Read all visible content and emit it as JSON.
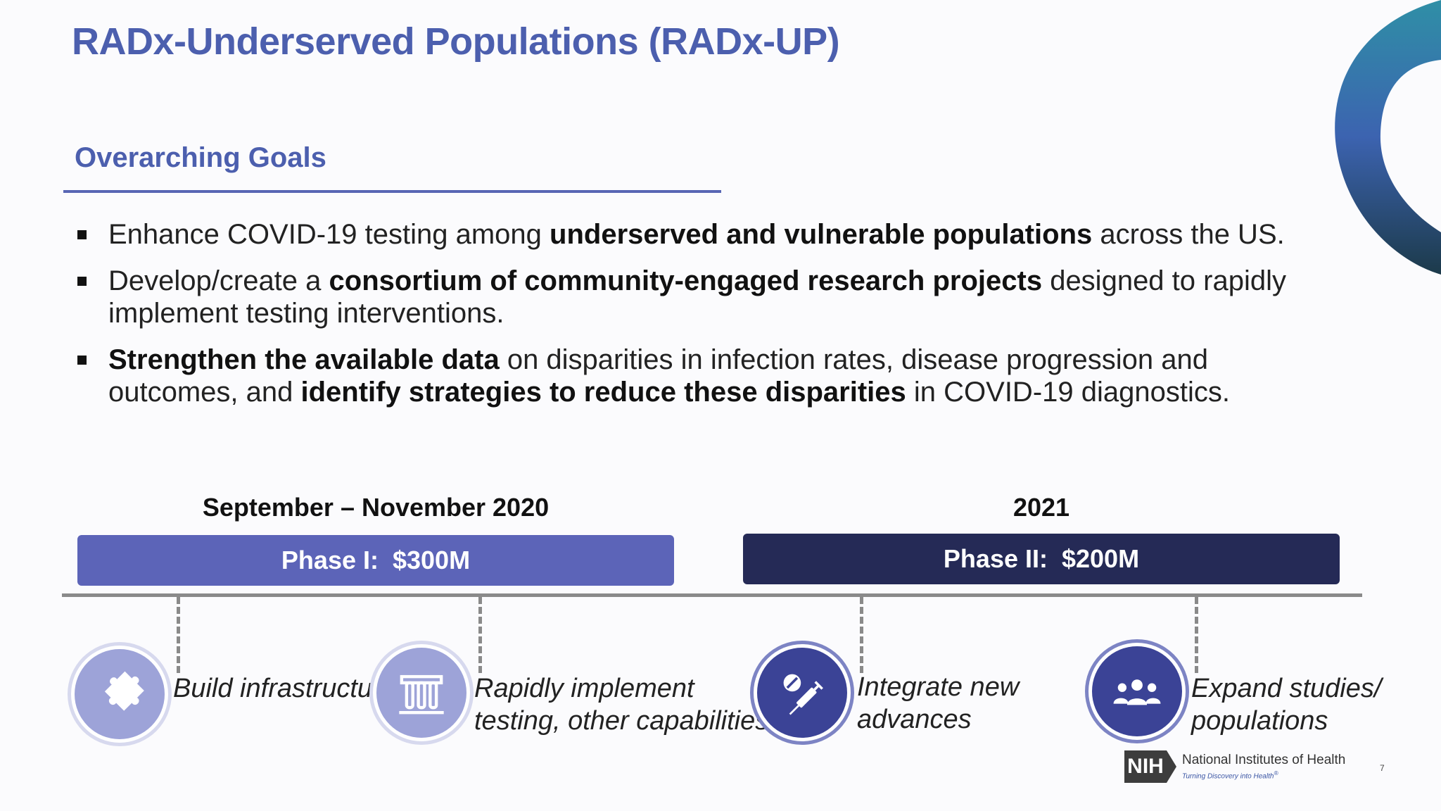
{
  "title": "RADx-Underserved Populations (RADx-UP)",
  "section_heading": "Overarching Goals",
  "goals": [
    {
      "parts": [
        {
          "text": "Enhance COVID-19 testing among ",
          "bold": false
        },
        {
          "text": "underserved and vulnerable populations",
          "bold": true
        },
        {
          "text": " across the US.",
          "bold": false
        }
      ]
    },
    {
      "parts": [
        {
          "text": "Develop/create a ",
          "bold": false
        },
        {
          "text": "consortium of community-engaged research projects",
          "bold": true
        },
        {
          "text": " designed to rapidly implement testing interventions.",
          "bold": false
        }
      ]
    },
    {
      "parts": [
        {
          "text": "Strengthen the available data",
          "bold": true
        },
        {
          "text": " on disparities in infection rates, disease progression and outcomes, and ",
          "bold": false
        },
        {
          "text": "identify strategies to reduce these disparities",
          "bold": true
        },
        {
          "text": " in COVID-19 diagnostics.",
          "bold": false
        }
      ]
    }
  ],
  "phases": {
    "phase1": {
      "date": "September – November 2020",
      "label": "Phase I:  $300M",
      "color": "#5c64b8"
    },
    "phase2": {
      "date": "2021",
      "label": "Phase II:  $200M",
      "color": "#252a56"
    }
  },
  "milestones": [
    {
      "label_line1": "Build infrastructure",
      "label_line2": "",
      "icon": "puzzle-icon"
    },
    {
      "label_line1": "Rapidly implement",
      "label_line2": "testing, other capabilities",
      "icon": "test-tubes-icon"
    },
    {
      "label_line1": "Integrate new",
      "label_line2": "advances",
      "icon": "syringe-pill-icon"
    },
    {
      "label_line1": "Expand studies/",
      "label_line2": "populations",
      "icon": "people-group-icon"
    }
  ],
  "colors": {
    "title_blue": "#4c5fae",
    "icon_light": "#9da3d8",
    "icon_dark": "#3b4396"
  },
  "footer": {
    "logo_abbr": "NIH",
    "org_name": "National Institutes of Health",
    "tagline": "Turning Discovery into Health",
    "tagline_mark": "®",
    "page_number": "7"
  }
}
